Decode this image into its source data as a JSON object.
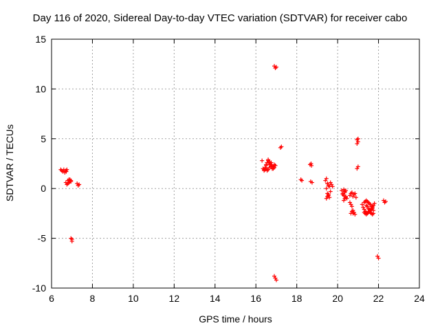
{
  "chart_data": {
    "type": "scatter",
    "title": "Day 116 of 2020, Sidereal Day-to-day VTEC variation (SDTVAR) for receiver cabo",
    "xlabel": "GPS time / hours",
    "ylabel": "SDTVAR / TECUs",
    "xlim": [
      6,
      24
    ],
    "ylim": [
      -10,
      15
    ],
    "xticks": [
      "6",
      "8",
      "10",
      "12",
      "14",
      "16",
      "18",
      "20",
      "22",
      "24"
    ],
    "yticks": [
      "-10",
      "-5",
      "0",
      "5",
      "10",
      "15"
    ],
    "grid": true,
    "marker": "+",
    "color": "#ff0000",
    "series": [
      {
        "name": "SDTVAR",
        "x": [
          6.45,
          6.5,
          6.55,
          6.6,
          6.65,
          6.7,
          6.72,
          6.75,
          6.8,
          6.85,
          6.9,
          6.95,
          6.7,
          6.75,
          6.8,
          6.85,
          6.9,
          6.95,
          7.25,
          7.3,
          7.35,
          6.95,
          7.0,
          7.0,
          16.3,
          16.35,
          16.4,
          16.45,
          16.5,
          16.55,
          16.6,
          16.65,
          16.7,
          16.75,
          16.8,
          16.85,
          16.9,
          16.95,
          16.4,
          16.45,
          16.5,
          16.55,
          16.6,
          16.65,
          16.7,
          16.75,
          16.8,
          16.85,
          16.9,
          16.95,
          16.5,
          16.55,
          16.6,
          16.65,
          16.7,
          16.75,
          16.8,
          17.2,
          17.25,
          16.9,
          16.95,
          17.0,
          16.9,
          16.95,
          17.0,
          18.2,
          18.25,
          18.65,
          18.7,
          18.72,
          18.68,
          18.75,
          19.4,
          19.45,
          19.5,
          19.55,
          19.6,
          19.65,
          19.7,
          19.75,
          19.5,
          19.55,
          19.6,
          19.65,
          19.45,
          19.5,
          19.55,
          19.45,
          19.5,
          20.2,
          20.25,
          20.3,
          20.35,
          20.4,
          20.45,
          20.3,
          20.35,
          20.4,
          20.25,
          20.3,
          20.35,
          20.4,
          20.6,
          20.65,
          20.7,
          20.75,
          20.8,
          20.85,
          20.9,
          20.6,
          20.65,
          20.7,
          20.75,
          20.8,
          20.85,
          20.65,
          20.7,
          20.75,
          20.95,
          21.0,
          20.95,
          21.0,
          20.95,
          21.0,
          21.2,
          21.25,
          21.3,
          21.35,
          21.4,
          21.45,
          21.5,
          21.55,
          21.6,
          21.65,
          21.7,
          21.75,
          21.8,
          21.3,
          21.35,
          21.4,
          21.45,
          21.5,
          21.55,
          21.6,
          21.65,
          21.7,
          21.75,
          21.4,
          21.45,
          21.5,
          21.55,
          21.6,
          21.65,
          21.7,
          21.3,
          21.35,
          21.4,
          21.45,
          21.5,
          21.55,
          21.6,
          21.65,
          21.7,
          21.75,
          21.95,
          22.0,
          22.25,
          22.3,
          22.35
        ],
        "y": [
          1.9,
          1.8,
          1.7,
          1.9,
          1.6,
          1.8,
          1.7,
          1.9,
          0.8,
          0.9,
          0.9,
          0.7,
          0.6,
          0.4,
          0.5,
          0.6,
          0.7,
          0.8,
          0.5,
          0.3,
          0.4,
          -5.0,
          -5.3,
          -5.1,
          2.8,
          2.0,
          1.9,
          2.1,
          2.3,
          2.6,
          2.9,
          2.7,
          2.5,
          2.3,
          2.0,
          2.2,
          2.4,
          2.3,
          1.8,
          1.9,
          2.0,
          1.8,
          1.9,
          2.1,
          2.4,
          2.6,
          2.2,
          2.0,
          2.1,
          2.3,
          2.4,
          2.6,
          2.8,
          2.6,
          2.4,
          2.2,
          2.0,
          4.1,
          4.2,
          12.3,
          12.1,
          12.2,
          -8.8,
          -9.0,
          -9.2,
          0.9,
          0.8,
          2.4,
          2.5,
          2.3,
          0.7,
          0.6,
          0.8,
          1.0,
          0.5,
          0.3,
          0.2,
          0.6,
          0.4,
          0.2,
          -0.5,
          -0.7,
          -0.9,
          -0.3,
          -1.0,
          -0.8,
          -0.6,
          0.0,
          0.5,
          -0.2,
          -0.5,
          -0.7,
          -0.3,
          -0.9,
          -1.0,
          -0.1,
          -0.4,
          -0.8,
          -0.6,
          -1.2,
          -1.0,
          -0.2,
          -0.7,
          -0.5,
          -0.4,
          -0.8,
          -0.6,
          -0.5,
          -0.9,
          -1.4,
          -1.6,
          -1.8,
          -2.2,
          -2.4,
          -2.6,
          -2.5,
          -2.3,
          -2.5,
          2.0,
          2.2,
          4.5,
          4.7,
          4.9,
          5.0,
          -1.6,
          -1.9,
          -2.1,
          -2.3,
          -2.4,
          -2.5,
          -2.4,
          -2.3,
          -2.2,
          -2.1,
          -1.9,
          -1.7,
          -1.5,
          -1.4,
          -1.3,
          -1.2,
          -1.3,
          -1.4,
          -1.5,
          -1.6,
          -1.8,
          -2.0,
          -2.2,
          -1.7,
          -1.8,
          -2.0,
          -2.1,
          -2.2,
          -2.0,
          -1.8,
          -2.4,
          -2.5,
          -2.6,
          -2.5,
          -2.4,
          -2.3,
          -2.4,
          -2.5,
          -2.6,
          -2.5,
          -6.8,
          -7.0,
          -1.2,
          -1.4,
          -1.3
        ]
      }
    ]
  }
}
